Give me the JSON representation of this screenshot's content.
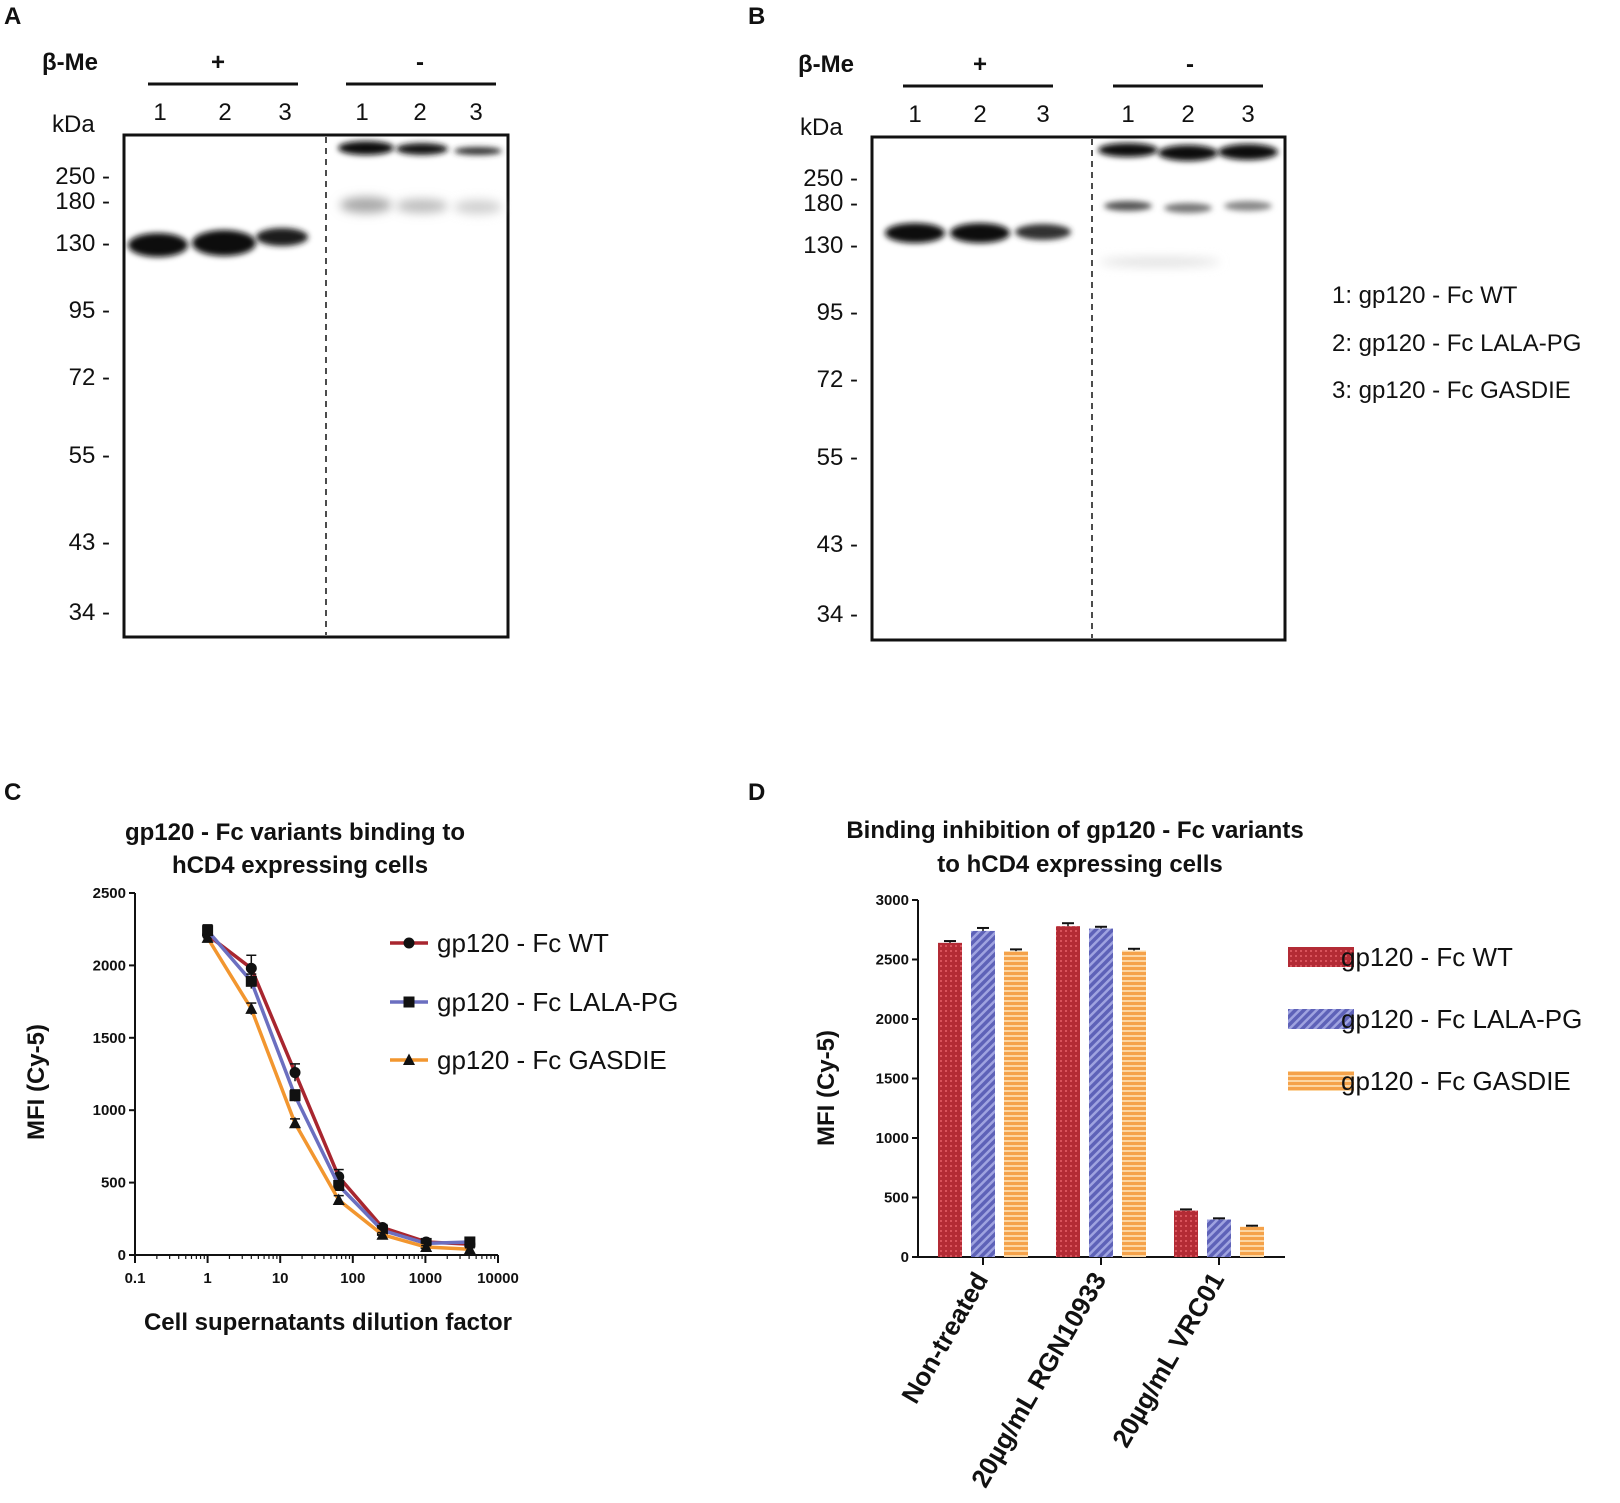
{
  "colors": {
    "wt": "#a8262f",
    "lala": "#6b6fc0",
    "gasdie": "#f2962f",
    "axis": "#111111"
  },
  "panels": {
    "a": "A",
    "b": "B",
    "c": "C",
    "d": "D"
  },
  "gel_a": {
    "reducing_label": "β-Me",
    "plus": "+",
    "minus": "-",
    "kda": "kDa",
    "lanes": [
      "1",
      "2",
      "3",
      "1",
      "2",
      "3"
    ],
    "markers": [
      "250 -",
      "180 -",
      "130 -",
      "95 -",
      "72 -",
      "55 -",
      "43 -",
      "34 -"
    ]
  },
  "gel_b": {
    "reducing_label": "β-Me",
    "plus": "+",
    "minus": "-",
    "kda": "kDa",
    "lanes": [
      "1",
      "2",
      "3",
      "1",
      "2",
      "3"
    ],
    "markers": [
      "250 -",
      "180 -",
      "130 -",
      "95 -",
      "72 -",
      "55 -",
      "43 -",
      "34 -"
    ]
  },
  "lane_key": [
    "1: gp120 - Fc WT",
    "2: gp120 - Fc LALA-PG",
    "3: gp120 - Fc GASDIE"
  ],
  "chart_data": [
    {
      "type": "line",
      "title_line1": "gp120 - Fc variants binding to",
      "title_line2": "hCD4 expressing cells",
      "xlabel": "Cell supernatants dilution factor",
      "ylabel": "MFI (Cy-5)",
      "xscale": "log",
      "xlim": [
        0.1,
        10000
      ],
      "ylim": [
        0,
        2500
      ],
      "x_ticks": [
        "0.1",
        "1",
        "10",
        "100",
        "1000",
        "10000"
      ],
      "y_ticks": [
        "0",
        "500",
        "1000",
        "1500",
        "2000",
        "2500"
      ],
      "x": [
        1,
        4,
        16,
        64,
        256,
        1024,
        4096
      ],
      "series": [
        {
          "name": "gp120 - Fc WT",
          "marker": "circle",
          "color": "#a8262f",
          "values": [
            2210,
            1980,
            1260,
            540,
            190,
            90,
            75
          ],
          "errors": [
            50,
            90,
            60,
            50,
            20,
            15,
            15
          ]
        },
        {
          "name": "gp120 - Fc LALA-PG",
          "marker": "square",
          "color": "#6b6fc0",
          "values": [
            2240,
            1890,
            1100,
            480,
            170,
            80,
            90
          ],
          "errors": [
            40,
            50,
            40,
            30,
            20,
            10,
            20
          ]
        },
        {
          "name": "gp120 - Fc GASDIE",
          "marker": "triangle",
          "color": "#f2962f",
          "values": [
            2190,
            1700,
            910,
            380,
            140,
            55,
            40
          ],
          "errors": [
            30,
            40,
            30,
            30,
            15,
            10,
            10
          ]
        }
      ],
      "legend": "top-right"
    },
    {
      "type": "bar",
      "title_line1": "Binding inhibition of gp120 - Fc variants",
      "title_line2": "to hCD4 expressing cells",
      "ylabel": "MFI (Cy-5)",
      "ylim": [
        0,
        3000
      ],
      "y_ticks": [
        "0",
        "500",
        "1000",
        "1500",
        "2000",
        "2500",
        "3000"
      ],
      "categories": [
        "Non-treated",
        "20µg/mL RGN10933",
        "20µg/mL VRC01"
      ],
      "series": [
        {
          "name": "gp120 - Fc WT",
          "color": "#a8262f",
          "values": [
            2640,
            2780,
            390
          ],
          "errors": [
            15,
            25,
            10
          ]
        },
        {
          "name": "gp120 - Fc LALA-PG",
          "color": "#6b6fc0",
          "values": [
            2740,
            2760,
            315
          ],
          "errors": [
            25,
            15,
            10
          ]
        },
        {
          "name": "gp120 - Fc GASDIE",
          "color": "#f2962f",
          "values": [
            2570,
            2575,
            255
          ],
          "errors": [
            15,
            15,
            8
          ]
        }
      ],
      "legend": "right"
    }
  ]
}
